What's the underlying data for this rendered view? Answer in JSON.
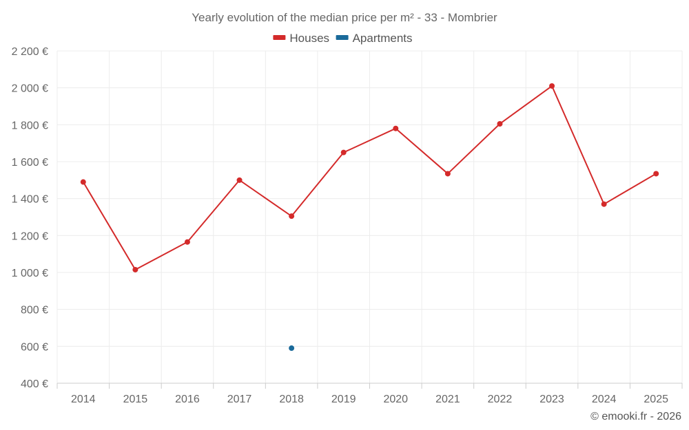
{
  "chart_data": {
    "type": "line",
    "title": "Yearly evolution of the median price per m² - 33 - Mombrier",
    "categories": [
      "2014",
      "2015",
      "2016",
      "2017",
      "2018",
      "2019",
      "2020",
      "2021",
      "2022",
      "2023",
      "2024",
      "2025"
    ],
    "ylim": [
      400,
      2200
    ],
    "yticks": [
      400,
      600,
      800,
      1000,
      1200,
      1400,
      1600,
      1800,
      2000,
      2200
    ],
    "ytick_labels": [
      "400 €",
      "600 €",
      "800 €",
      "1 000 €",
      "1 200 €",
      "1 400 €",
      "1 600 €",
      "1 800 €",
      "2 000 €",
      "2 200 €"
    ],
    "grid": true,
    "legend_position": "top-center",
    "series": [
      {
        "name": "Houses",
        "color": "#d42a2a",
        "values": [
          1490,
          1015,
          1165,
          1500,
          1305,
          1650,
          1780,
          1535,
          1805,
          2010,
          1370,
          1535
        ]
      },
      {
        "name": "Apartments",
        "color": "#1a6a9a",
        "values": [
          null,
          null,
          null,
          null,
          590,
          null,
          null,
          null,
          null,
          null,
          null,
          null
        ]
      }
    ],
    "credit": "© emooki.fr - 2026"
  }
}
